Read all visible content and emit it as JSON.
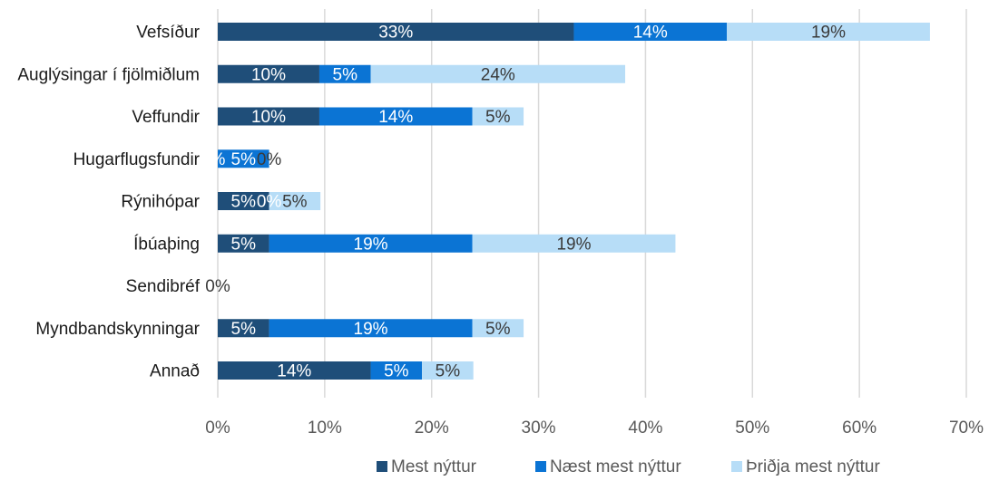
{
  "chart_data": {
    "type": "bar",
    "orientation": "horizontal",
    "stacked": true,
    "categories": [
      "Vefsíður",
      "Auglýsingar í fjölmiðlum",
      "Veffundir",
      "Hugarflugsfundir",
      "Rýnihópar",
      "Íbúaþing",
      "Sendibréf",
      "Myndbandskynningar",
      "Annað"
    ],
    "series": [
      {
        "name": "Mest nýttur",
        "color": "#1f4e79",
        "values": [
          33.3,
          9.5,
          9.5,
          0,
          4.8,
          4.8,
          0,
          4.8,
          14.3
        ],
        "labels": [
          "33%",
          "10%",
          "10%",
          "%",
          "5%",
          "5%",
          "",
          "5%",
          "14%"
        ]
      },
      {
        "name": "Næst mest nýttur",
        "color": "#0b74d4",
        "values": [
          14.3,
          4.8,
          14.3,
          4.8,
          0,
          19.0,
          0,
          19.0,
          4.8
        ],
        "labels": [
          "14%",
          "5%",
          "14%",
          "5%",
          "0%",
          "19%",
          "",
          "19%",
          "5%"
        ]
      },
      {
        "name": "Þriðja mest nýttur",
        "color": "#b7ddf7",
        "values": [
          19.0,
          23.8,
          4.8,
          0,
          4.8,
          19.0,
          0,
          4.8,
          4.8
        ],
        "labels": [
          "19%",
          "24%",
          "5%",
          "0%",
          "5%",
          "19%",
          "0%",
          "5%",
          "5%"
        ]
      }
    ],
    "xlim": [
      0,
      70
    ],
    "x_ticks": [
      "0%",
      "10%",
      "20%",
      "30%",
      "40%",
      "50%",
      "60%",
      "70%"
    ],
    "grid": true,
    "legend_position": "bottom"
  }
}
